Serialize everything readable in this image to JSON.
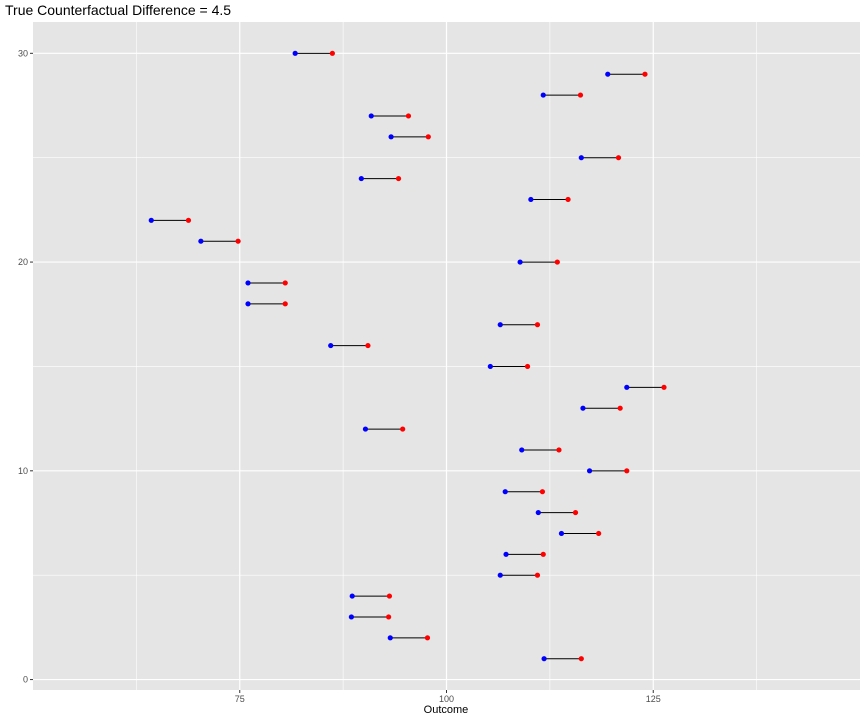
{
  "chart_data": {
    "type": "dumbbell",
    "title": "True Counterfactual Difference = 4.5",
    "xlabel": "Outcome",
    "ylabel": "",
    "xlim": [
      50,
      150
    ],
    "ylim": [
      -0.5,
      31.5
    ],
    "x_ticks": [
      75,
      100,
      125
    ],
    "x_tick_labels": [
      "75",
      "100",
      "125"
    ],
    "y_ticks": [
      0,
      10,
      20,
      30
    ],
    "y_tick_labels": [
      "0",
      "10",
      "20",
      "30"
    ],
    "grid": true,
    "background": "#e5e5e5",
    "grid_color": "#ffffff",
    "segment_color": "#000000",
    "start_color": "#0000ff",
    "end_color": "#ff0000",
    "points": [
      {
        "y": 1,
        "start": 111.8,
        "end": 116.3
      },
      {
        "y": 2,
        "start": 93.2,
        "end": 97.7
      },
      {
        "y": 3,
        "start": 88.5,
        "end": 93.0
      },
      {
        "y": 4,
        "start": 88.6,
        "end": 93.1
      },
      {
        "y": 5,
        "start": 106.5,
        "end": 111.0
      },
      {
        "y": 6,
        "start": 107.2,
        "end": 111.7
      },
      {
        "y": 7,
        "start": 113.9,
        "end": 118.4
      },
      {
        "y": 8,
        "start": 111.1,
        "end": 115.6
      },
      {
        "y": 9,
        "start": 107.1,
        "end": 111.6
      },
      {
        "y": 10,
        "start": 117.3,
        "end": 121.8
      },
      {
        "y": 11,
        "start": 109.1,
        "end": 113.6
      },
      {
        "y": 12,
        "start": 90.2,
        "end": 94.7
      },
      {
        "y": 13,
        "start": 116.5,
        "end": 121.0
      },
      {
        "y": 14,
        "start": 121.8,
        "end": 126.3
      },
      {
        "y": 15,
        "start": 105.3,
        "end": 109.8
      },
      {
        "y": 16,
        "start": 86.0,
        "end": 90.5
      },
      {
        "y": 17,
        "start": 106.5,
        "end": 111.0
      },
      {
        "y": 18,
        "start": 76.0,
        "end": 80.5
      },
      {
        "y": 19,
        "start": 76.0,
        "end": 80.5
      },
      {
        "y": 20,
        "start": 108.9,
        "end": 113.4
      },
      {
        "y": 21,
        "start": 70.3,
        "end": 74.8
      },
      {
        "y": 22,
        "start": 64.3,
        "end": 68.8
      },
      {
        "y": 23,
        "start": 110.2,
        "end": 114.7
      },
      {
        "y": 24,
        "start": 89.7,
        "end": 94.2
      },
      {
        "y": 25,
        "start": 116.3,
        "end": 120.8
      },
      {
        "y": 26,
        "start": 93.3,
        "end": 97.8
      },
      {
        "y": 27,
        "start": 90.9,
        "end": 95.4
      },
      {
        "y": 28,
        "start": 111.7,
        "end": 116.2
      },
      {
        "y": 29,
        "start": 119.5,
        "end": 124.0
      },
      {
        "y": 30,
        "start": 81.7,
        "end": 86.2
      }
    ]
  }
}
